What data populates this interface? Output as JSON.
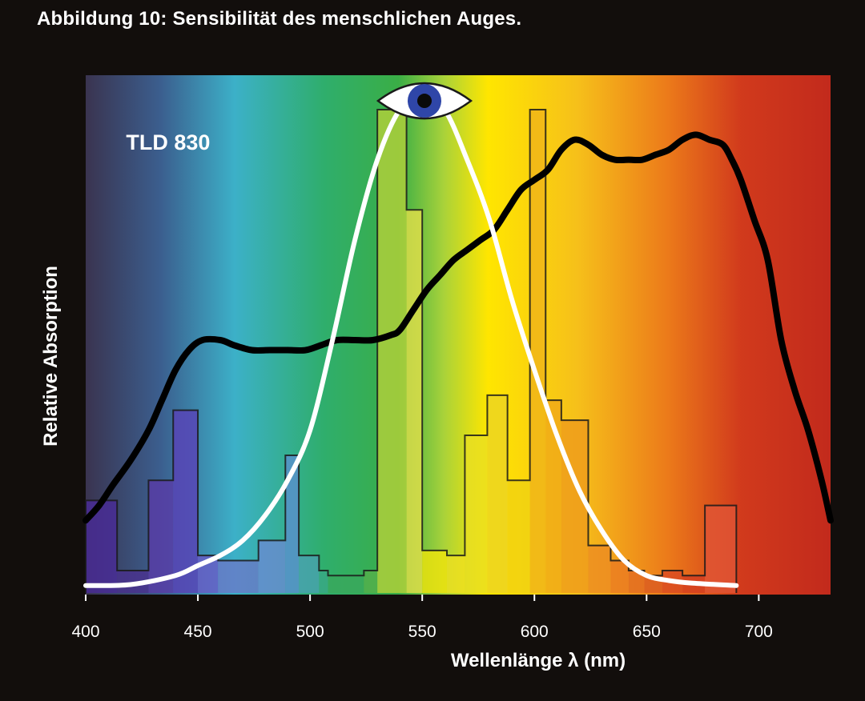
{
  "figure_title": "Abbildung 10: Sensibilität des menschlichen Auges.",
  "colors": {
    "background": "#120e0c",
    "absorption_curve": "#000000",
    "eye_sensitivity_curve": "#ffffff",
    "spectrum": [
      "#3a3450",
      "#3f8fb6",
      "#3cb0c8",
      "#2fae56",
      "#a8d23a",
      "#ffe600",
      "#f6b21a",
      "#e8701c",
      "#d13a1c",
      "#c22a1c"
    ]
  },
  "chart_data": {
    "type": "line",
    "title": "",
    "xlabel": "Wellenlänge λ (nm)",
    "ylabel": "Relative Absorption",
    "xlim": [
      400,
      732
    ],
    "ylim": [
      0,
      1
    ],
    "x_ticks": [
      400,
      450,
      500,
      550,
      600,
      650,
      700
    ],
    "grid": false,
    "legend": "none",
    "annotations": [
      {
        "text": "TLD 830",
        "x": 418,
        "y": 0.88
      }
    ],
    "icons": [
      {
        "name": "eye-icon",
        "x": 551,
        "y": 0.96
      }
    ],
    "series": [
      {
        "kind": "line",
        "color": "#000000",
        "points": [
          [
            400,
            0.14
          ],
          [
            406,
            0.17
          ],
          [
            412,
            0.21
          ],
          [
            420,
            0.26
          ],
          [
            428,
            0.32
          ],
          [
            434,
            0.38
          ],
          [
            440,
            0.44
          ],
          [
            446,
            0.48
          ],
          [
            452,
            0.5
          ],
          [
            460,
            0.5
          ],
          [
            466,
            0.49
          ],
          [
            474,
            0.48
          ],
          [
            482,
            0.48
          ],
          [
            490,
            0.48
          ],
          [
            498,
            0.48
          ],
          [
            505,
            0.49
          ],
          [
            512,
            0.5
          ],
          [
            520,
            0.5
          ],
          [
            528,
            0.5
          ],
          [
            536,
            0.51
          ],
          [
            540,
            0.52
          ],
          [
            546,
            0.56
          ],
          [
            552,
            0.6
          ],
          [
            558,
            0.63
          ],
          [
            564,
            0.66
          ],
          [
            570,
            0.68
          ],
          [
            576,
            0.7
          ],
          [
            582,
            0.72
          ],
          [
            588,
            0.76
          ],
          [
            594,
            0.8
          ],
          [
            600,
            0.82
          ],
          [
            606,
            0.84
          ],
          [
            612,
            0.88
          ],
          [
            618,
            0.9
          ],
          [
            624,
            0.89
          ],
          [
            630,
            0.87
          ],
          [
            636,
            0.86
          ],
          [
            642,
            0.86
          ],
          [
            648,
            0.86
          ],
          [
            654,
            0.87
          ],
          [
            660,
            0.88
          ],
          [
            666,
            0.9
          ],
          [
            672,
            0.91
          ],
          [
            678,
            0.9
          ],
          [
            684,
            0.89
          ],
          [
            688,
            0.86
          ],
          [
            692,
            0.82
          ],
          [
            698,
            0.74
          ],
          [
            704,
            0.66
          ],
          [
            710,
            0.5
          ],
          [
            716,
            0.4
          ],
          [
            722,
            0.32
          ],
          [
            728,
            0.22
          ],
          [
            732,
            0.14
          ]
        ]
      },
      {
        "kind": "line",
        "color": "#ffffff",
        "points": [
          [
            400,
            0.01
          ],
          [
            420,
            0.012
          ],
          [
            440,
            0.03
          ],
          [
            450,
            0.05
          ],
          [
            460,
            0.07
          ],
          [
            470,
            0.1
          ],
          [
            480,
            0.15
          ],
          [
            490,
            0.22
          ],
          [
            500,
            0.32
          ],
          [
            510,
            0.5
          ],
          [
            520,
            0.7
          ],
          [
            530,
            0.86
          ],
          [
            540,
            0.96
          ],
          [
            550,
            0.99
          ],
          [
            560,
            0.96
          ],
          [
            570,
            0.86
          ],
          [
            580,
            0.74
          ],
          [
            590,
            0.58
          ],
          [
            600,
            0.44
          ],
          [
            610,
            0.31
          ],
          [
            620,
            0.2
          ],
          [
            630,
            0.12
          ],
          [
            640,
            0.06
          ],
          [
            650,
            0.03
          ],
          [
            660,
            0.02
          ],
          [
            670,
            0.015
          ],
          [
            690,
            0.01
          ]
        ]
      },
      {
        "kind": "step-bars",
        "name": "TLD 830",
        "bins": [
          {
            "x0": 400,
            "x1": 414,
            "y": 0.18,
            "color": "#4a2a9a"
          },
          {
            "x0": 414,
            "x1": 428,
            "y": 0.04,
            "color": "#4a2f90"
          },
          {
            "x0": 428,
            "x1": 439,
            "y": 0.22,
            "color": "#5a3aa8"
          },
          {
            "x0": 439,
            "x1": 450,
            "y": 0.36,
            "color": "#5a40b8"
          },
          {
            "x0": 450,
            "x1": 459,
            "y": 0.07,
            "color": "#6a5ac8"
          },
          {
            "x0": 459,
            "x1": 477,
            "y": 0.06,
            "color": "#6a78c8"
          },
          {
            "x0": 477,
            "x1": 489,
            "y": 0.1,
            "color": "#6a8ad2"
          },
          {
            "x0": 489,
            "x1": 495,
            "y": 0.27,
            "color": "#5b8fcf"
          },
          {
            "x0": 495,
            "x1": 504,
            "y": 0.07,
            "color": "#4aa2b0"
          },
          {
            "x0": 504,
            "x1": 508,
            "y": 0.04,
            "color": "#3aa886"
          },
          {
            "x0": 508,
            "x1": 524,
            "y": 0.03,
            "color": "#3aa85c"
          },
          {
            "x0": 524,
            "x1": 530,
            "y": 0.04,
            "color": "#56b04a"
          },
          {
            "x0": 530,
            "x1": 543,
            "y": 0.96,
            "color": "#b8d23a"
          },
          {
            "x0": 543,
            "x1": 550,
            "y": 0.76,
            "color": "#e8e04a"
          },
          {
            "x0": 550,
            "x1": 561,
            "y": 0.08,
            "color": "#f2e40a"
          },
          {
            "x0": 561,
            "x1": 569,
            "y": 0.07,
            "color": "#f0e020"
          },
          {
            "x0": 569,
            "x1": 579,
            "y": 0.31,
            "color": "#e9df22"
          },
          {
            "x0": 579,
            "x1": 588,
            "y": 0.39,
            "color": "#ead424"
          },
          {
            "x0": 588,
            "x1": 598,
            "y": 0.22,
            "color": "#f0d212"
          },
          {
            "x0": 598,
            "x1": 605,
            "y": 0.96,
            "color": "#f0b41a"
          },
          {
            "x0": 605,
            "x1": 612,
            "y": 0.38,
            "color": "#f0a818"
          },
          {
            "x0": 612,
            "x1": 624,
            "y": 0.34,
            "color": "#ee9a1c"
          },
          {
            "x0": 624,
            "x1": 634,
            "y": 0.09,
            "color": "#ec8a22"
          },
          {
            "x0": 634,
            "x1": 642,
            "y": 0.06,
            "color": "#ea7a22"
          },
          {
            "x0": 642,
            "x1": 649,
            "y": 0.04,
            "color": "#e26a22"
          },
          {
            "x0": 649,
            "x1": 657,
            "y": 0.03,
            "color": "#da5822"
          },
          {
            "x0": 657,
            "x1": 666,
            "y": 0.04,
            "color": "#d84822"
          },
          {
            "x0": 666,
            "x1": 676,
            "y": 0.03,
            "color": "#d43c20"
          },
          {
            "x0": 676,
            "x1": 690,
            "y": 0.17,
            "color": "#e05536"
          }
        ]
      }
    ]
  }
}
